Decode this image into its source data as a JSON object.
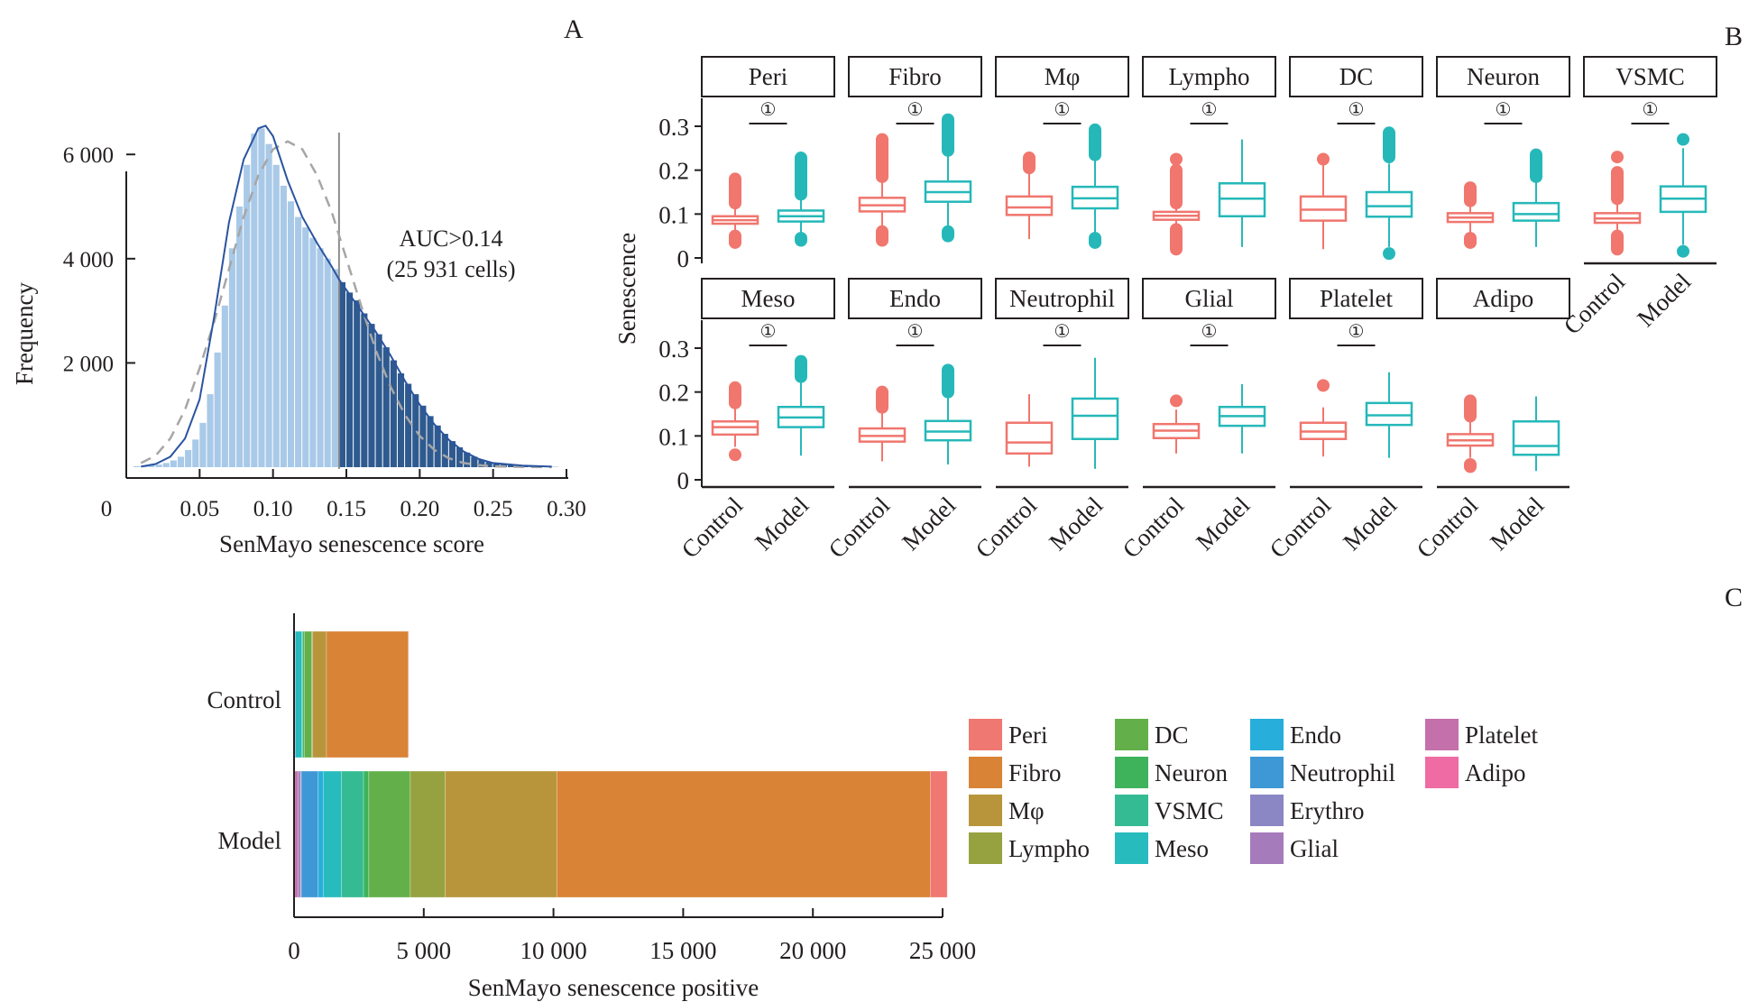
{
  "panel_labels": {
    "a": "A",
    "b": "B",
    "c": "C"
  },
  "chart_data": [
    {
      "id": "A",
      "type": "bar",
      "subtype": "histogram",
      "title": "",
      "xlabel": "SenMayo senescence score",
      "ylabel": "Frequency",
      "xlim": [
        0,
        0.3
      ],
      "ylim": [
        0,
        6800
      ],
      "xticks": [
        0.05,
        0.1,
        0.15,
        0.2,
        0.25,
        0.3
      ],
      "xtick_labels": [
        "0.05",
        "0.10",
        "0.15",
        "0.20",
        "0.25",
        "0.30"
      ],
      "origin_label": "0",
      "yticks": [
        2000,
        4000,
        6000
      ],
      "ytick_labels": [
        "2 000",
        "4 000",
        "6 000"
      ],
      "threshold": 0.145,
      "annotation": [
        "AUC>0.14",
        "(25 931 cells)"
      ],
      "bin_width": 0.005,
      "bins_start": [
        0.005,
        0.01,
        0.015,
        0.02,
        0.025,
        0.03,
        0.035,
        0.04,
        0.045,
        0.05,
        0.055,
        0.06,
        0.065,
        0.07,
        0.075,
        0.08,
        0.085,
        0.09,
        0.095,
        0.1,
        0.105,
        0.11,
        0.115,
        0.12,
        0.125,
        0.13,
        0.135,
        0.14,
        0.145,
        0.15,
        0.155,
        0.16,
        0.165,
        0.17,
        0.175,
        0.18,
        0.185,
        0.19,
        0.195,
        0.2,
        0.205,
        0.21,
        0.215,
        0.22,
        0.225,
        0.23,
        0.235,
        0.24,
        0.245,
        0.25,
        0.255,
        0.26,
        0.265,
        0.27,
        0.275,
        0.28,
        0.285,
        0.29
      ],
      "counts": [
        20,
        25,
        35,
        50,
        80,
        130,
        200,
        330,
        530,
        850,
        1400,
        2200,
        3100,
        4200,
        5000,
        5800,
        6400,
        6500,
        6200,
        5800,
        5400,
        5100,
        4800,
        4600,
        4400,
        4200,
        4000,
        3800,
        3550,
        3350,
        3200,
        2950,
        2750,
        2550,
        2300,
        2050,
        1800,
        1600,
        1400,
        1180,
        980,
        800,
        640,
        500,
        380,
        280,
        200,
        140,
        100,
        70,
        50,
        35,
        25,
        18,
        12,
        8,
        6,
        4
      ],
      "series": [
        {
          "name": "below threshold",
          "color": "#a9c9e8"
        },
        {
          "name": "above threshold",
          "color": "#2f5a8f"
        },
        {
          "name": "density",
          "color": "#2a54a0",
          "style": "solid",
          "x": [
            0.01,
            0.02,
            0.03,
            0.04,
            0.05,
            0.06,
            0.07,
            0.08,
            0.09,
            0.095,
            0.1,
            0.11,
            0.12,
            0.13,
            0.14,
            0.145,
            0.15,
            0.16,
            0.17,
            0.18,
            0.19,
            0.2,
            0.21,
            0.22,
            0.23,
            0.24,
            0.25,
            0.27,
            0.29
          ],
          "y": [
            10,
            60,
            200,
            550,
            1300,
            2900,
            4700,
            5900,
            6500,
            6550,
            6350,
            5500,
            4800,
            4300,
            3850,
            3600,
            3400,
            3000,
            2600,
            2150,
            1650,
            1200,
            820,
            520,
            300,
            160,
            80,
            30,
            10
          ]
        },
        {
          "name": "normal fit",
          "color": "#a6a6a6",
          "style": "dashed",
          "x": [
            0.01,
            0.02,
            0.03,
            0.04,
            0.05,
            0.06,
            0.07,
            0.08,
            0.09,
            0.1,
            0.11,
            0.12,
            0.13,
            0.14,
            0.15,
            0.16,
            0.17,
            0.18,
            0.19,
            0.2,
            0.21,
            0.22,
            0.23,
            0.24,
            0.25,
            0.27,
            0.29
          ],
          "y": [
            80,
            220,
            550,
            1100,
            1900,
            2800,
            3800,
            4800,
            5600,
            6100,
            6250,
            6100,
            5600,
            4900,
            4000,
            3100,
            2250,
            1550,
            1000,
            600,
            330,
            170,
            80,
            40,
            15,
            5,
            2
          ]
        }
      ]
    },
    {
      "id": "B",
      "type": "box",
      "ylabel": "Senescence",
      "ylim": [
        0,
        0.35
      ],
      "yticks": [
        0,
        0.1,
        0.2,
        0.3
      ],
      "ytick_labels": [
        "0",
        "0.1",
        "0.2",
        "0.3"
      ],
      "groups": [
        "Control",
        "Model"
      ],
      "group_colors": [
        "#f0766e",
        "#26b8b9"
      ],
      "significance_marker": "①",
      "panels": [
        {
          "name": "Peri",
          "sig": true,
          "control": {
            "q1": 0.078,
            "med": 0.086,
            "q3": 0.095,
            "lo": 0.06,
            "hi": 0.12,
            "out_lo": [
              0.035,
              0.05
            ],
            "out_hi": [
              0.125,
              0.18
            ]
          },
          "model": {
            "q1": 0.083,
            "med": 0.095,
            "q3": 0.108,
            "lo": 0.055,
            "hi": 0.14,
            "out_lo": [
              0.04,
              0.045
            ],
            "out_hi": [
              0.145,
              0.228
            ]
          }
        },
        {
          "name": "Fibro",
          "sig": true,
          "control": {
            "q1": 0.106,
            "med": 0.12,
            "q3": 0.137,
            "lo": 0.065,
            "hi": 0.18,
            "out_lo": [
              0.04,
              0.06
            ],
            "out_hi": [
              0.185,
              0.27
            ]
          },
          "model": {
            "q1": 0.128,
            "med": 0.15,
            "q3": 0.174,
            "lo": 0.07,
            "hi": 0.24,
            "out_lo": [
              0.05,
              0.06
            ],
            "out_hi": [
              0.245,
              0.315
            ]
          }
        },
        {
          "name": "Mφ",
          "sig": true,
          "control": {
            "q1": 0.098,
            "med": 0.115,
            "q3": 0.14,
            "lo": 0.043,
            "hi": 0.2,
            "out_lo": [],
            "out_hi": [
              0.205,
              0.228
            ]
          },
          "model": {
            "q1": 0.113,
            "med": 0.136,
            "q3": 0.162,
            "lo": 0.05,
            "hi": 0.23,
            "out_lo": [
              0.035,
              0.045
            ],
            "out_hi": [
              0.235,
              0.292
            ]
          }
        },
        {
          "name": "Lympho",
          "sig": true,
          "control": {
            "q1": 0.087,
            "med": 0.096,
            "q3": 0.105,
            "lo": 0.073,
            "hi": 0.12,
            "out_lo": [
              0.02,
              0.065
            ],
            "out_hi": [
              0.125,
              0.2,
              0.225
            ]
          },
          "model": {
            "q1": 0.095,
            "med": 0.135,
            "q3": 0.17,
            "lo": 0.025,
            "hi": 0.27,
            "out_lo": [],
            "out_hi": []
          }
        },
        {
          "name": "DC",
          "sig": true,
          "control": {
            "q1": 0.085,
            "med": 0.11,
            "q3": 0.14,
            "lo": 0.02,
            "hi": 0.215,
            "out_lo": [],
            "out_hi": [
              0.225
            ]
          },
          "model": {
            "q1": 0.094,
            "med": 0.118,
            "q3": 0.15,
            "lo": 0.025,
            "hi": 0.215,
            "out_lo": [
              0.01
            ],
            "out_hi": [
              0.23,
              0.285
            ]
          }
        },
        {
          "name": "Neuron",
          "sig": true,
          "control": {
            "q1": 0.082,
            "med": 0.092,
            "q3": 0.102,
            "lo": 0.055,
            "hi": 0.12,
            "out_lo": [
              0.035,
              0.045
            ],
            "out_hi": [
              0.13,
              0.16
            ]
          },
          "model": {
            "q1": 0.085,
            "med": 0.1,
            "q3": 0.125,
            "lo": 0.025,
            "hi": 0.18,
            "out_lo": [],
            "out_hi": [
              0.185,
              0.235
            ]
          }
        },
        {
          "name": "VSMC",
          "sig": true,
          "control": {
            "q1": 0.08,
            "med": 0.09,
            "q3": 0.102,
            "lo": 0.06,
            "hi": 0.13,
            "out_lo": [
              0.02,
              0.05
            ],
            "out_hi": [
              0.135,
              0.195,
              0.23
            ]
          },
          "model": {
            "q1": 0.105,
            "med": 0.135,
            "q3": 0.163,
            "lo": 0.03,
            "hi": 0.25,
            "out_lo": [
              0.015
            ],
            "out_hi": [
              0.27
            ]
          }
        },
        {
          "name": "Meso",
          "sig": true,
          "control": {
            "q1": 0.103,
            "med": 0.12,
            "q3": 0.133,
            "lo": 0.075,
            "hi": 0.17,
            "out_lo": [
              0.057
            ],
            "out_hi": [
              0.175,
              0.21
            ]
          },
          "model": {
            "q1": 0.12,
            "med": 0.142,
            "q3": 0.166,
            "lo": 0.055,
            "hi": 0.225,
            "out_lo": [],
            "out_hi": [
              0.235,
              0.27
            ]
          }
        },
        {
          "name": "Endo",
          "sig": true,
          "control": {
            "q1": 0.087,
            "med": 0.1,
            "q3": 0.117,
            "lo": 0.042,
            "hi": 0.155,
            "out_lo": [],
            "out_hi": [
              0.165,
              0.2
            ]
          },
          "model": {
            "q1": 0.09,
            "med": 0.11,
            "q3": 0.134,
            "lo": 0.035,
            "hi": 0.195,
            "out_lo": [],
            "out_hi": [
              0.2,
              0.25
            ]
          }
        },
        {
          "name": "Neutrophil",
          "sig": true,
          "control": {
            "q1": 0.06,
            "med": 0.085,
            "q3": 0.13,
            "lo": 0.03,
            "hi": 0.195,
            "out_lo": [],
            "out_hi": []
          },
          "model": {
            "q1": 0.093,
            "med": 0.146,
            "q3": 0.185,
            "lo": 0.025,
            "hi": 0.278,
            "out_lo": [],
            "out_hi": []
          }
        },
        {
          "name": "Glial",
          "sig": true,
          "control": {
            "q1": 0.095,
            "med": 0.112,
            "q3": 0.127,
            "lo": 0.06,
            "hi": 0.16,
            "out_lo": [],
            "out_hi": [
              0.18
            ]
          },
          "model": {
            "q1": 0.123,
            "med": 0.145,
            "q3": 0.166,
            "lo": 0.06,
            "hi": 0.218,
            "out_lo": [],
            "out_hi": []
          }
        },
        {
          "name": "Platelet",
          "sig": true,
          "control": {
            "q1": 0.093,
            "med": 0.11,
            "q3": 0.13,
            "lo": 0.053,
            "hi": 0.165,
            "out_lo": [],
            "out_hi": [
              0.215
            ]
          },
          "model": {
            "q1": 0.125,
            "med": 0.147,
            "q3": 0.175,
            "lo": 0.05,
            "hi": 0.245,
            "out_lo": [],
            "out_hi": []
          }
        },
        {
          "name": "Adipo",
          "sig": false,
          "control": {
            "q1": 0.078,
            "med": 0.09,
            "q3": 0.104,
            "lo": 0.05,
            "hi": 0.135,
            "out_lo": [
              0.03,
              0.035
            ],
            "out_hi": [
              0.145,
              0.18
            ]
          },
          "model": {
            "q1": 0.057,
            "med": 0.077,
            "q3": 0.133,
            "lo": 0.02,
            "hi": 0.19,
            "out_lo": [],
            "out_hi": []
          }
        }
      ]
    },
    {
      "id": "C",
      "type": "bar",
      "subtype": "stacked-horizontal",
      "xlabel": "SenMayo senescence positive",
      "ylabel": "",
      "categories": [
        "Control",
        "Model"
      ],
      "xlim": [
        0,
        25000
      ],
      "xticks": [
        0,
        5000,
        10000,
        15000,
        20000,
        25000
      ],
      "xtick_labels": [
        "0",
        "5 000",
        "10 000",
        "15 000",
        "20 000",
        "25 000"
      ],
      "stack_order": [
        "Adipo",
        "Platelet",
        "Glial",
        "Erythro",
        "Neutrophil",
        "Endo",
        "Meso",
        "VSMC",
        "Neuron",
        "DC",
        "Lympho",
        "Mφ",
        "Fibro",
        "Peri"
      ],
      "series": [
        {
          "name": "Peri",
          "color": "#ef7872",
          "values": [
            20,
            650
          ]
        },
        {
          "name": "Fibro",
          "color": "#d98336",
          "values": [
            3150,
            14400
          ]
        },
        {
          "name": "Mφ",
          "color": "#b8953a",
          "values": [
            530,
            4300
          ]
        },
        {
          "name": "Lympho",
          "color": "#96a23f",
          "values": [
            40,
            1350
          ]
        },
        {
          "name": "DC",
          "color": "#63b04a",
          "values": [
            280,
            1600
          ]
        },
        {
          "name": "Neuron",
          "color": "#3eb35b",
          "values": [
            60,
            200
          ]
        },
        {
          "name": "VSMC",
          "color": "#35bb93",
          "values": [
            40,
            850
          ]
        },
        {
          "name": "Meso",
          "color": "#27bbbd",
          "values": [
            250,
            700
          ]
        },
        {
          "name": "Endo",
          "color": "#27aedb",
          "values": [
            20,
            200
          ]
        },
        {
          "name": "Neutrophil",
          "color": "#3f98d6",
          "values": [
            30,
            650
          ]
        },
        {
          "name": "Erythro",
          "color": "#8b86c4",
          "values": [
            0,
            30
          ]
        },
        {
          "name": "Glial",
          "color": "#a57bbb",
          "values": [
            0,
            100
          ]
        },
        {
          "name": "Platelet",
          "color": "#c470ab",
          "values": [
            0,
            120
          ]
        },
        {
          "name": "Adipo",
          "color": "#ef6ba4",
          "values": [
            0,
            30
          ]
        }
      ],
      "legend": {
        "placement": "right",
        "columns": [
          [
            "Peri",
            "Fibro",
            "Mφ",
            "Lympho"
          ],
          [
            "DC",
            "Neuron",
            "VSMC",
            "Meso"
          ],
          [
            "Endo",
            "Neutrophil",
            "Erythro",
            "Glial"
          ],
          [
            "Platelet",
            "Adipo"
          ]
        ]
      }
    }
  ]
}
